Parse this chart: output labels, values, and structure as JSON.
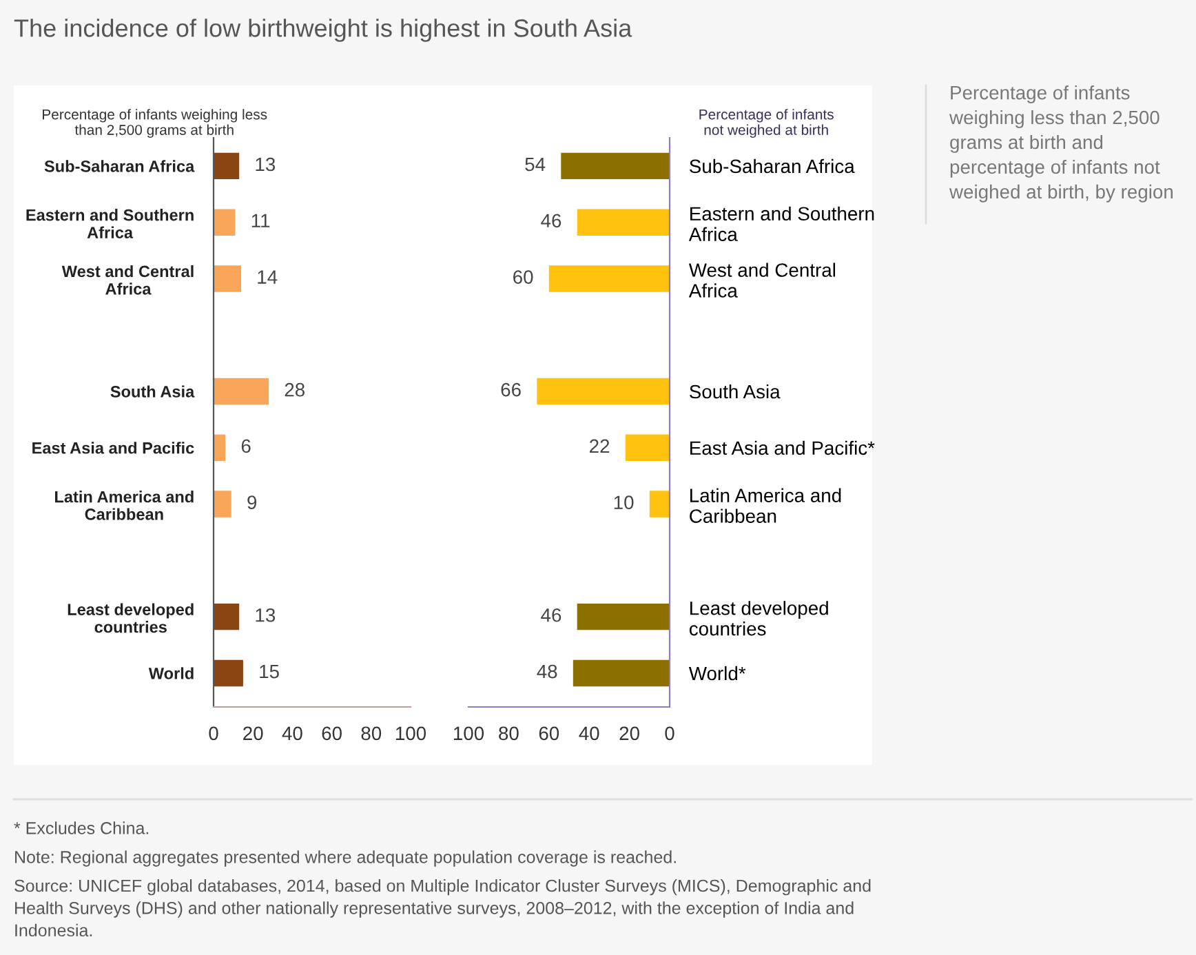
{
  "chart_data": [
    {
      "type": "bar",
      "orientation": "horizontal",
      "title": "Percentage of infants weighing less\nthan 2,500 grams at birth",
      "categories": [
        "Sub-Saharan Africa",
        "Eastern and Southern\nAfrica",
        "West and Central\nAfrica",
        null,
        "South Asia",
        "East Asia and Pacific",
        "Latin America and\nCaribbean",
        null,
        "Least developed\ncountries",
        "World"
      ],
      "values": [
        13,
        11,
        14,
        null,
        28,
        6,
        9,
        null,
        13,
        15
      ],
      "colors": [
        "#8b4513",
        "#f9a65a",
        "#f9a65a",
        null,
        "#f9a65a",
        "#f9a65a",
        "#f9a65a",
        null,
        "#8b4513",
        "#8b4513"
      ],
      "xlim": [
        0,
        100
      ],
      "xticks": [
        0,
        20,
        40,
        60,
        80,
        100
      ],
      "data_labels": true,
      "grid": false,
      "legend": false,
      "annotations": [
        "The incidence of low birthweight is highest in South Asia",
        "Percentage of infants weighing less than 2,500 grams at birth and percentage of infants not weighed at birth, by region",
        "* Excludes China.",
        "Note: Regional aggregates presented where adequate population coverage is reached.",
        "Source: UNICEF global databases, 2014, based on Multiple Indicator Cluster Surveys (MICS), Demographic and\nHealth Surveys (DHS) and other nationally representative surveys, 2008–2012, with the exception of India and\nIndonesia."
      ]
    },
    {
      "type": "bar",
      "orientation": "horizontal",
      "title": "Percentage of infants\nnot weighed at birth",
      "categories": [
        "Sub-Saharan Africa",
        "Eastern and Southern\nAfrica",
        "West and Central\nAfrica",
        null,
        "South Asia",
        "East Asia and Pacific*",
        "Latin America and\nCaribbean",
        null,
        "Least developed\ncountries",
        "World*"
      ],
      "values": [
        54,
        46,
        60,
        null,
        66,
        22,
        10,
        null,
        46,
        48
      ],
      "colors": [
        "#8b7000",
        "#ffc20e",
        "#ffc20e",
        null,
        "#ffc20e",
        "#ffc20e",
        "#ffc20e",
        null,
        "#8b7000",
        "#8b7000"
      ],
      "xlim": [
        100,
        0
      ],
      "xticks": [
        100,
        80,
        60,
        40,
        20,
        0
      ],
      "data_labels": true,
      "grid": false,
      "legend": false
    }
  ]
}
